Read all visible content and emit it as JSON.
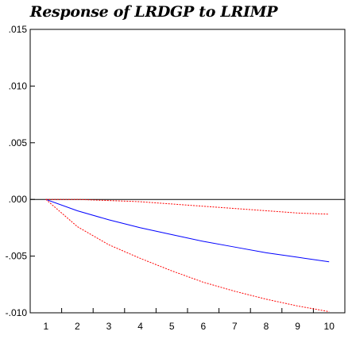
{
  "chart_data": {
    "type": "line",
    "title": "Response of LRDGP to LRIMP",
    "x": [
      1,
      2,
      3,
      4,
      5,
      6,
      7,
      8,
      9,
      10
    ],
    "xlim": [
      0.5,
      10.5
    ],
    "ylim": [
      -0.01,
      0.015
    ],
    "x_tick_labels": [
      "1",
      "2",
      "3",
      "4",
      "5",
      "6",
      "7",
      "8",
      "9",
      "10"
    ],
    "y_ticks": [
      -0.01,
      -0.005,
      0.0,
      0.005,
      0.01,
      0.015
    ],
    "y_tick_labels": [
      "-.010",
      "-.005",
      ".000",
      ".005",
      ".010",
      ".015"
    ],
    "zero_line": true,
    "grid": false,
    "series": [
      {
        "values": [
          0.0,
          -0.001,
          -0.0018,
          -0.0025,
          -0.0031,
          -0.0037,
          -0.0042,
          -0.0047,
          -0.0051,
          -0.0055
        ],
        "color": "#0000ff",
        "style": "solid"
      },
      {
        "values": [
          0.0,
          0.0,
          -0.0001,
          -0.0002,
          -0.0004,
          -0.0006,
          -0.0008,
          -0.001,
          -0.0012,
          -0.0013
        ],
        "color": "#ff0000",
        "style": "dashed"
      },
      {
        "values": [
          0.0,
          -0.0024,
          -0.004,
          -0.0052,
          -0.0063,
          -0.0073,
          -0.0081,
          -0.0088,
          -0.0094,
          -0.0099
        ],
        "color": "#ff0000",
        "style": "dashed"
      }
    ]
  }
}
